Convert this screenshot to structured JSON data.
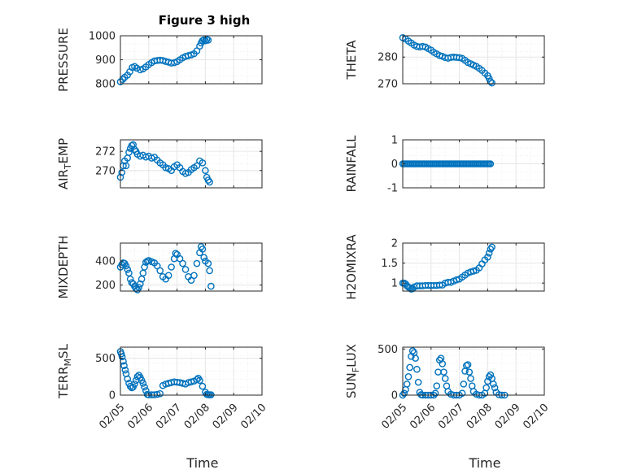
{
  "figure": {
    "title": "Figure 3 high",
    "marker_color": "#0072BD",
    "grid_color": "#e6e6e6",
    "axis_color": "#262626"
  },
  "chart_data": [
    {
      "type": "scatter",
      "title": "Figure 3 high",
      "ylabel": "PRESSURE",
      "xlabel": "",
      "xlim": [
        0,
        5
      ],
      "ylim": [
        800,
        1000
      ],
      "grid": true,
      "x_ticks": [],
      "y_ticks": [
        {
          "v": 800,
          "label": "800"
        },
        {
          "v": 900,
          "label": "900"
        },
        {
          "v": 1000,
          "label": "1000"
        }
      ],
      "points": [
        [
          0.0,
          808
        ],
        [
          0.08,
          818
        ],
        [
          0.15,
          827
        ],
        [
          0.25,
          836
        ],
        [
          0.33,
          850
        ],
        [
          0.42,
          868
        ],
        [
          0.5,
          872
        ],
        [
          0.58,
          865
        ],
        [
          0.7,
          858
        ],
        [
          0.8,
          862
        ],
        [
          0.9,
          870
        ],
        [
          1.0,
          880
        ],
        [
          1.1,
          888
        ],
        [
          1.2,
          895
        ],
        [
          1.3,
          897
        ],
        [
          1.4,
          898
        ],
        [
          1.5,
          897
        ],
        [
          1.6,
          893
        ],
        [
          1.7,
          890
        ],
        [
          1.8,
          886
        ],
        [
          1.9,
          888
        ],
        [
          2.0,
          892
        ],
        [
          2.1,
          900
        ],
        [
          2.2,
          908
        ],
        [
          2.3,
          914
        ],
        [
          2.4,
          917
        ],
        [
          2.5,
          920
        ],
        [
          2.6,
          925
        ],
        [
          2.7,
          937
        ],
        [
          2.8,
          957
        ],
        [
          2.85,
          970
        ],
        [
          2.9,
          980
        ],
        [
          2.95,
          983
        ],
        [
          3.0,
          979
        ],
        [
          3.05,
          985
        ],
        [
          3.1,
          982
        ]
      ]
    },
    {
      "type": "scatter",
      "ylabel": "THETA",
      "xlim": [
        0,
        5
      ],
      "ylim": [
        270,
        288
      ],
      "grid": true,
      "x_ticks": [],
      "y_ticks": [
        {
          "v": 270,
          "label": "270"
        },
        {
          "v": 280,
          "label": "280"
        }
      ],
      "points": [
        [
          0.0,
          287.3
        ],
        [
          0.1,
          286.8
        ],
        [
          0.2,
          286.0
        ],
        [
          0.3,
          285.3
        ],
        [
          0.4,
          284.5
        ],
        [
          0.5,
          284.0
        ],
        [
          0.6,
          283.8
        ],
        [
          0.7,
          284.0
        ],
        [
          0.8,
          283.8
        ],
        [
          0.9,
          283.2
        ],
        [
          1.0,
          282.6
        ],
        [
          1.1,
          281.8
        ],
        [
          1.2,
          281.2
        ],
        [
          1.3,
          280.6
        ],
        [
          1.4,
          280.3
        ],
        [
          1.5,
          279.8
        ],
        [
          1.6,
          279.6
        ],
        [
          1.7,
          279.9
        ],
        [
          1.8,
          280.0
        ],
        [
          1.9,
          279.9
        ],
        [
          2.0,
          279.8
        ],
        [
          2.1,
          279.5
        ],
        [
          2.2,
          278.8
        ],
        [
          2.3,
          278.0
        ],
        [
          2.4,
          277.5
        ],
        [
          2.5,
          277.0
        ],
        [
          2.6,
          276.5
        ],
        [
          2.7,
          275.8
        ],
        [
          2.8,
          275.0
        ],
        [
          2.9,
          274.0
        ],
        [
          3.0,
          273.0
        ],
        [
          3.05,
          272.0
        ],
        [
          3.1,
          270.8
        ],
        [
          3.15,
          270.3
        ]
      ]
    },
    {
      "type": "scatter",
      "ylabel": "AIR",
      "ylabel_sub": "T",
      "ylabel_rest": "EMP",
      "xlim": [
        0,
        5
      ],
      "ylim": [
        268.2,
        273.2
      ],
      "grid": true,
      "x_ticks": [],
      "y_ticks": [
        {
          "v": 270,
          "label": "270"
        },
        {
          "v": 272,
          "label": "272"
        }
      ],
      "points": [
        [
          0.0,
          269.3
        ],
        [
          0.05,
          269.8
        ],
        [
          0.1,
          270.5
        ],
        [
          0.15,
          271.0
        ],
        [
          0.2,
          270.5
        ],
        [
          0.25,
          271.3
        ],
        [
          0.3,
          271.9
        ],
        [
          0.35,
          272.3
        ],
        [
          0.4,
          272.6
        ],
        [
          0.45,
          272.7
        ],
        [
          0.5,
          272.2
        ],
        [
          0.55,
          272.0
        ],
        [
          0.6,
          271.7
        ],
        [
          0.7,
          271.5
        ],
        [
          0.8,
          271.6
        ],
        [
          0.9,
          271.4
        ],
        [
          1.0,
          271.5
        ],
        [
          1.1,
          271.3
        ],
        [
          1.2,
          271.4
        ],
        [
          1.3,
          271.1
        ],
        [
          1.4,
          270.8
        ],
        [
          1.5,
          270.6
        ],
        [
          1.6,
          270.3
        ],
        [
          1.7,
          270.2
        ],
        [
          1.8,
          270.0
        ],
        [
          1.9,
          270.4
        ],
        [
          2.0,
          270.6
        ],
        [
          2.1,
          270.3
        ],
        [
          2.2,
          269.9
        ],
        [
          2.3,
          269.7
        ],
        [
          2.4,
          269.8
        ],
        [
          2.5,
          270.1
        ],
        [
          2.6,
          270.3
        ],
        [
          2.7,
          270.5
        ],
        [
          2.8,
          271.0
        ],
        [
          2.9,
          270.8
        ],
        [
          3.0,
          270.0
        ],
        [
          3.05,
          269.3
        ],
        [
          3.1,
          269.0
        ],
        [
          3.15,
          268.8
        ]
      ]
    },
    {
      "type": "scatter",
      "ylabel": "RAINFALL",
      "xlim": [
        0,
        5
      ],
      "ylim": [
        -1,
        1
      ],
      "grid": true,
      "x_ticks": [],
      "y_ticks": [
        {
          "v": -1,
          "label": "-1"
        },
        {
          "v": 0,
          "label": "0"
        },
        {
          "v": 1,
          "label": "1"
        }
      ],
      "constant_series": {
        "y": 0,
        "x_start": 0.0,
        "x_end": 3.1,
        "step": 0.05
      }
    },
    {
      "type": "scatter",
      "ylabel": "MIXDEPTH",
      "xlim": [
        0,
        5
      ],
      "ylim": [
        150,
        550
      ],
      "grid": true,
      "x_ticks": [],
      "y_ticks": [
        {
          "v": 200,
          "label": "200"
        },
        {
          "v": 400,
          "label": "400"
        }
      ],
      "points": [
        [
          0.0,
          350
        ],
        [
          0.05,
          370
        ],
        [
          0.1,
          385
        ],
        [
          0.15,
          380
        ],
        [
          0.2,
          360
        ],
        [
          0.25,
          330
        ],
        [
          0.3,
          300
        ],
        [
          0.35,
          250
        ],
        [
          0.4,
          220
        ],
        [
          0.45,
          210
        ],
        [
          0.5,
          190
        ],
        [
          0.55,
          170
        ],
        [
          0.6,
          160
        ],
        [
          0.65,
          180
        ],
        [
          0.7,
          210
        ],
        [
          0.75,
          250
        ],
        [
          0.8,
          300
        ],
        [
          0.85,
          350
        ],
        [
          0.9,
          390
        ],
        [
          0.95,
          400
        ],
        [
          1.0,
          405
        ],
        [
          1.1,
          395
        ],
        [
          1.2,
          385
        ],
        [
          1.3,
          360
        ],
        [
          1.4,
          320
        ],
        [
          1.5,
          270
        ],
        [
          1.6,
          250
        ],
        [
          1.7,
          280
        ],
        [
          1.8,
          350
        ],
        [
          1.9,
          420
        ],
        [
          1.95,
          465
        ],
        [
          2.0,
          455
        ],
        [
          2.1,
          420
        ],
        [
          2.2,
          380
        ],
        [
          2.3,
          330
        ],
        [
          2.4,
          270
        ],
        [
          2.5,
          240
        ],
        [
          2.6,
          280
        ],
        [
          2.7,
          380
        ],
        [
          2.8,
          470
        ],
        [
          2.85,
          520
        ],
        [
          2.9,
          500
        ],
        [
          2.95,
          430
        ],
        [
          3.0,
          400
        ],
        [
          3.1,
          380
        ],
        [
          3.15,
          320
        ],
        [
          3.2,
          190
        ]
      ]
    },
    {
      "type": "scatter",
      "ylabel": "H2OMIXRA",
      "xlim": [
        0,
        5
      ],
      "ylim": [
        0.8,
        2.0
      ],
      "grid": true,
      "x_ticks": [],
      "y_ticks": [
        {
          "v": 1,
          "label": "1"
        },
        {
          "v": 1.5,
          "label": "1.5"
        },
        {
          "v": 2,
          "label": "2"
        }
      ],
      "points": [
        [
          0.0,
          1.0
        ],
        [
          0.05,
          1.0
        ],
        [
          0.1,
          0.98
        ],
        [
          0.15,
          0.93
        ],
        [
          0.2,
          0.9
        ],
        [
          0.25,
          0.88
        ],
        [
          0.3,
          0.85
        ],
        [
          0.35,
          0.86
        ],
        [
          0.4,
          0.9
        ],
        [
          0.5,
          0.93
        ],
        [
          0.6,
          0.93
        ],
        [
          0.7,
          0.93
        ],
        [
          0.8,
          0.94
        ],
        [
          0.9,
          0.94
        ],
        [
          1.0,
          0.94
        ],
        [
          1.1,
          0.94
        ],
        [
          1.2,
          0.94
        ],
        [
          1.3,
          0.95
        ],
        [
          1.4,
          0.95
        ],
        [
          1.5,
          1.0
        ],
        [
          1.6,
          1.02
        ],
        [
          1.7,
          1.02
        ],
        [
          1.8,
          1.05
        ],
        [
          1.9,
          1.08
        ],
        [
          2.0,
          1.1
        ],
        [
          2.1,
          1.15
        ],
        [
          2.2,
          1.2
        ],
        [
          2.3,
          1.25
        ],
        [
          2.4,
          1.28
        ],
        [
          2.5,
          1.3
        ],
        [
          2.6,
          1.32
        ],
        [
          2.7,
          1.38
        ],
        [
          2.8,
          1.48
        ],
        [
          2.9,
          1.58
        ],
        [
          3.0,
          1.65
        ],
        [
          3.05,
          1.75
        ],
        [
          3.1,
          1.85
        ],
        [
          3.15,
          1.9
        ]
      ]
    },
    {
      "type": "scatter",
      "ylabel": "TERR",
      "ylabel_sub": "M",
      "ylabel_rest": "SL",
      "xlabel": "Time",
      "xlim": [
        0,
        5
      ],
      "ylim": [
        0,
        650
      ],
      "grid": true,
      "x_ticks": [
        {
          "v": 0,
          "label": "02/05"
        },
        {
          "v": 1,
          "label": "02/06"
        },
        {
          "v": 2,
          "label": "02/07"
        },
        {
          "v": 3,
          "label": "02/08"
        },
        {
          "v": 4,
          "label": "02/09"
        },
        {
          "v": 5,
          "label": "02/10"
        }
      ],
      "y_ticks": [
        {
          "v": 0,
          "label": "0"
        },
        {
          "v": 500,
          "label": "500"
        }
      ],
      "points": [
        [
          0.0,
          590
        ],
        [
          0.03,
          560
        ],
        [
          0.06,
          520
        ],
        [
          0.1,
          460
        ],
        [
          0.13,
          400
        ],
        [
          0.17,
          340
        ],
        [
          0.2,
          290
        ],
        [
          0.25,
          220
        ],
        [
          0.3,
          160
        ],
        [
          0.35,
          120
        ],
        [
          0.4,
          100
        ],
        [
          0.45,
          110
        ],
        [
          0.5,
          150
        ],
        [
          0.55,
          200
        ],
        [
          0.6,
          250
        ],
        [
          0.65,
          270
        ],
        [
          0.7,
          240
        ],
        [
          0.75,
          200
        ],
        [
          0.8,
          160
        ],
        [
          0.85,
          110
        ],
        [
          0.9,
          60
        ],
        [
          0.95,
          10
        ],
        [
          1.0,
          5
        ],
        [
          1.1,
          5
        ],
        [
          1.2,
          5
        ],
        [
          1.3,
          10
        ],
        [
          1.4,
          20
        ],
        [
          1.5,
          130
        ],
        [
          1.6,
          150
        ],
        [
          1.7,
          160
        ],
        [
          1.8,
          170
        ],
        [
          1.9,
          180
        ],
        [
          2.0,
          175
        ],
        [
          2.1,
          170
        ],
        [
          2.2,
          160
        ],
        [
          2.3,
          150
        ],
        [
          2.4,
          170
        ],
        [
          2.5,
          180
        ],
        [
          2.6,
          190
        ],
        [
          2.7,
          210
        ],
        [
          2.75,
          230
        ],
        [
          2.8,
          200
        ],
        [
          2.9,
          120
        ],
        [
          3.0,
          40
        ],
        [
          3.05,
          10
        ],
        [
          3.1,
          5
        ],
        [
          3.15,
          5
        ],
        [
          3.2,
          5
        ]
      ]
    },
    {
      "type": "scatter",
      "ylabel": "SUN",
      "ylabel_sub": "F",
      "ylabel_rest": "LUX",
      "xlabel": "Time",
      "xlim": [
        0,
        5
      ],
      "ylim": [
        0,
        520
      ],
      "grid": true,
      "x_ticks": [
        {
          "v": 0,
          "label": "02/05"
        },
        {
          "v": 1,
          "label": "02/06"
        },
        {
          "v": 2,
          "label": "02/07"
        },
        {
          "v": 3,
          "label": "02/08"
        },
        {
          "v": 4,
          "label": "02/09"
        },
        {
          "v": 5,
          "label": "02/10"
        }
      ],
      "y_ticks": [
        {
          "v": 0,
          "label": "0"
        },
        {
          "v": 500,
          "label": "500"
        }
      ],
      "points": [
        [
          0.0,
          0
        ],
        [
          0.05,
          20
        ],
        [
          0.1,
          60
        ],
        [
          0.15,
          120
        ],
        [
          0.2,
          200
        ],
        [
          0.25,
          300
        ],
        [
          0.3,
          420
        ],
        [
          0.35,
          480
        ],
        [
          0.4,
          460
        ],
        [
          0.45,
          400
        ],
        [
          0.5,
          280
        ],
        [
          0.55,
          140
        ],
        [
          0.6,
          30
        ],
        [
          0.65,
          5
        ],
        [
          0.7,
          0
        ],
        [
          0.8,
          0
        ],
        [
          0.9,
          0
        ],
        [
          1.0,
          0
        ],
        [
          1.1,
          0
        ],
        [
          1.15,
          20
        ],
        [
          1.2,
          100
        ],
        [
          1.25,
          250
        ],
        [
          1.3,
          380
        ],
        [
          1.35,
          400
        ],
        [
          1.4,
          340
        ],
        [
          1.45,
          250
        ],
        [
          1.5,
          180
        ],
        [
          1.55,
          100
        ],
        [
          1.6,
          40
        ],
        [
          1.7,
          10
        ],
        [
          1.8,
          0
        ],
        [
          1.9,
          0
        ],
        [
          2.0,
          0
        ],
        [
          2.1,
          20
        ],
        [
          2.15,
          120
        ],
        [
          2.2,
          260
        ],
        [
          2.25,
          320
        ],
        [
          2.3,
          330
        ],
        [
          2.35,
          250
        ],
        [
          2.4,
          180
        ],
        [
          2.45,
          100
        ],
        [
          2.5,
          40
        ],
        [
          2.6,
          10
        ],
        [
          2.7,
          0
        ],
        [
          2.8,
          0
        ],
        [
          2.9,
          20
        ],
        [
          2.95,
          80
        ],
        [
          3.0,
          150
        ],
        [
          3.05,
          200
        ],
        [
          3.1,
          220
        ],
        [
          3.15,
          180
        ],
        [
          3.2,
          120
        ],
        [
          3.25,
          80
        ],
        [
          3.3,
          30
        ],
        [
          3.4,
          5
        ],
        [
          3.5,
          0
        ],
        [
          3.6,
          0
        ]
      ]
    }
  ]
}
